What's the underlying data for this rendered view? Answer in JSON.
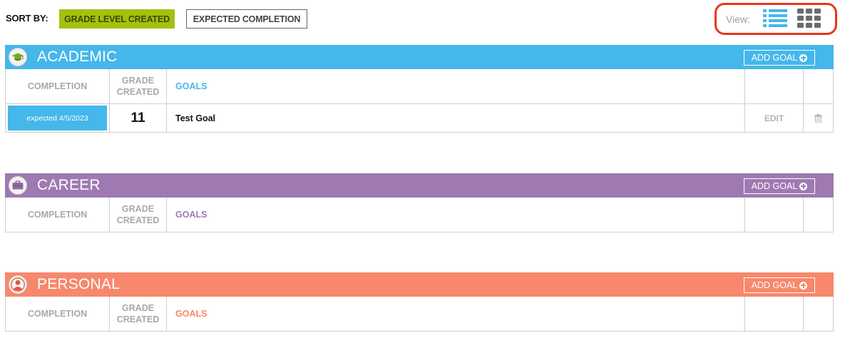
{
  "sort": {
    "label": "SORT BY:",
    "options": [
      "GRADE LEVEL CREATED",
      "EXPECTED COMPLETION"
    ]
  },
  "view": {
    "label": "View:",
    "active": "list"
  },
  "colors": {
    "academic": "#45b7ea",
    "career": "#9f79b2",
    "personal": "#f7886b",
    "sort_active": "#a5c00e",
    "highlight": "#e8361d"
  },
  "table_headers": {
    "completion": "COMPLETION",
    "grade_created_line1": "GRADE",
    "grade_created_line2": "CREATED",
    "goals": "GOALS"
  },
  "sections": [
    {
      "title": "ACADEMIC",
      "icon": "graduation-cap-icon",
      "add_goal": "ADD GOAL",
      "goals": [
        {
          "completion": "expected 4/5/2023",
          "grade": "11",
          "name": "Test Goal",
          "edit": "EDIT"
        }
      ]
    },
    {
      "title": "CAREER",
      "icon": "briefcase-icon",
      "add_goal": "ADD GOAL",
      "goals": []
    },
    {
      "title": "PERSONAL",
      "icon": "person-icon",
      "add_goal": "ADD GOAL",
      "goals": []
    }
  ]
}
